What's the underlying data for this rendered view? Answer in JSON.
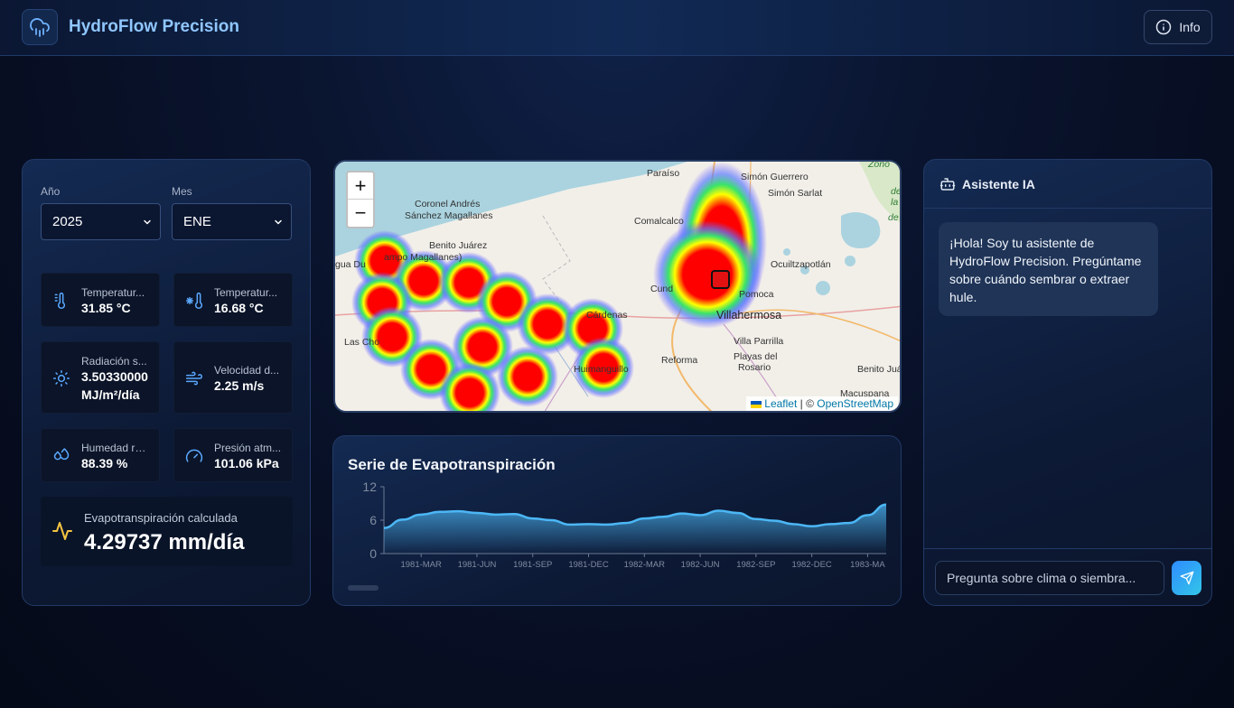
{
  "header": {
    "app_title": "HydroFlow Precision",
    "logo_icon": "cloud-rain-icon",
    "info_label": "Info",
    "info_icon": "info-icon"
  },
  "filters": {
    "year_label": "Año",
    "year_value": "2025",
    "month_label": "Mes",
    "month_value": "ENE"
  },
  "stats": [
    {
      "icon": "thermometer-icon",
      "label": "Temperatur...",
      "value": "31.85 °C"
    },
    {
      "icon": "thermometer-snow-icon",
      "label": "Temperatur...",
      "value": "16.68 °C"
    },
    {
      "icon": "sun-icon",
      "label": "Radiación s...",
      "value": "3.50330000",
      "value2": "MJ/m²/día"
    },
    {
      "icon": "wind-icon",
      "label": "Velocidad d...",
      "value": "2.25 m/s"
    },
    {
      "icon": "droplets-icon",
      "label": "Humedad re...",
      "value": "88.39 %"
    },
    {
      "icon": "gauge-icon",
      "label": "Presión atm...",
      "value": "101.06 kPa"
    }
  ],
  "et": {
    "icon": "activity-icon",
    "label": "Evapotranspiración calculada",
    "value": "4.29737 mm/día",
    "accent": "#f5c542"
  },
  "map": {
    "zoom_in": "+",
    "zoom_out": "−",
    "place_labels": [
      "Paraíso",
      "Simón Guerrero",
      "Simón Sarlat",
      "Coronel Andrés",
      "Sánchez Magallanes",
      "Comalcalco",
      "Benito Juárez",
      "ampo Magallanes)",
      "gua Du",
      "Ocuiltzapotlán",
      "Cund",
      "Pomoca",
      "Villahermosa",
      "Cárdenas",
      "Las Cho",
      "Villa Parrilla",
      "Playas del",
      "Rosario",
      "Reforma",
      "Huimanguillo",
      "Benito Juá",
      "Macuspana",
      "Zono",
      "de la",
      "de"
    ],
    "attribution_leaflet": "Leaflet",
    "attribution_sep": " | © ",
    "attribution_osm": "OpenStreetMap"
  },
  "chart_data": {
    "type": "area",
    "title": "Serie de Evapotranspiración",
    "x_tick_labels": [
      "1981-MAR",
      "1981-JUN",
      "1981-SEP",
      "1981-DEC",
      "1982-MAR",
      "1982-JUN",
      "1982-SEP",
      "1982-DEC",
      "1983-MA"
    ],
    "y_ticks": [
      0,
      6,
      12
    ],
    "ylim": [
      0,
      12
    ],
    "x": [
      "1981-01",
      "1981-02",
      "1981-03",
      "1981-04",
      "1981-05",
      "1981-06",
      "1981-07",
      "1981-08",
      "1981-09",
      "1981-10",
      "1981-11",
      "1981-12",
      "1982-01",
      "1982-02",
      "1982-03",
      "1982-04",
      "1982-05",
      "1982-06",
      "1982-07",
      "1982-08",
      "1982-09",
      "1982-10",
      "1982-11",
      "1982-12",
      "1983-01",
      "1983-02",
      "1983-03",
      "1983-04"
    ],
    "values": [
      4.6,
      6.1,
      7.0,
      7.5,
      7.6,
      7.3,
      7.0,
      7.1,
      6.3,
      6.0,
      5.2,
      5.3,
      5.2,
      5.5,
      6.3,
      6.6,
      7.2,
      6.9,
      7.7,
      7.3,
      6.2,
      5.9,
      5.3,
      4.9,
      5.3,
      5.5,
      6.9,
      8.8
    ],
    "line_color": "#4cb7f5"
  },
  "assistant": {
    "title": "Asistente IA",
    "icon": "bot-icon",
    "greeting": "¡Hola! Soy tu asistente de HydroFlow Precision. Pregúntame sobre cuándo sembrar o extraer hule.",
    "input_placeholder": "Pregunta sobre clima o siembra...",
    "send_icon": "send-icon"
  }
}
